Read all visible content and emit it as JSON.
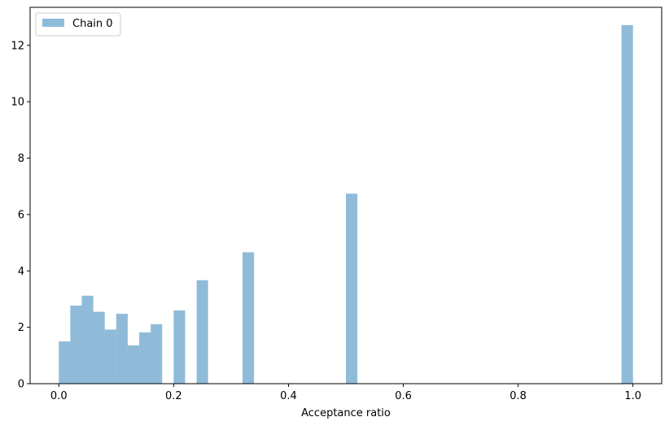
{
  "chart_data": {
    "type": "bar",
    "title": "",
    "xlabel": "Acceptance ratio",
    "ylabel": "",
    "xlim": [
      -0.05,
      1.05
    ],
    "ylim": [
      0,
      13.35
    ],
    "bin_width": 0.02,
    "xticks": [
      0.0,
      0.2,
      0.4,
      0.6,
      0.8,
      1.0
    ],
    "xtick_labels": [
      "0.0",
      "0.2",
      "0.4",
      "0.6",
      "0.8",
      "1.0"
    ],
    "yticks": [
      0,
      2,
      4,
      6,
      8,
      10,
      12
    ],
    "ytick_labels": [
      "0",
      "2",
      "4",
      "6",
      "8",
      "10",
      "12"
    ],
    "grid": false,
    "legend_position": "top-left",
    "series": [
      {
        "name": "Chain 0",
        "color": "#1f77b4",
        "alpha": 0.5,
        "bins": [
          {
            "x0": 0.0,
            "x1": 0.02,
            "value": 1.5
          },
          {
            "x0": 0.02,
            "x1": 0.04,
            "value": 2.77
          },
          {
            "x0": 0.04,
            "x1": 0.06,
            "value": 3.12
          },
          {
            "x0": 0.06,
            "x1": 0.08,
            "value": 2.55
          },
          {
            "x0": 0.08,
            "x1": 0.1,
            "value": 1.92
          },
          {
            "x0": 0.1,
            "x1": 0.12,
            "value": 2.48
          },
          {
            "x0": 0.12,
            "x1": 0.14,
            "value": 1.36
          },
          {
            "x0": 0.14,
            "x1": 0.16,
            "value": 1.82
          },
          {
            "x0": 0.16,
            "x1": 0.18,
            "value": 2.11
          },
          {
            "x0": 0.2,
            "x1": 0.22,
            "value": 2.6
          },
          {
            "x0": 0.24,
            "x1": 0.26,
            "value": 3.67
          },
          {
            "x0": 0.32,
            "x1": 0.34,
            "value": 4.66
          },
          {
            "x0": 0.5,
            "x1": 0.52,
            "value": 6.74
          },
          {
            "x0": 0.98,
            "x1": 1.0,
            "value": 12.72
          }
        ]
      }
    ]
  }
}
